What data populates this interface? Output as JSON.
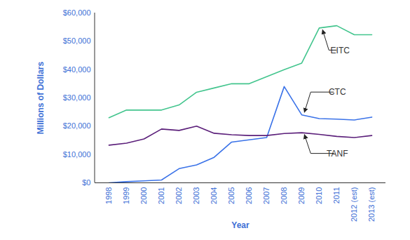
{
  "chart_data": {
    "type": "line",
    "x_label": "Year",
    "y_label": "Millions of Dollars",
    "categories": [
      "1998",
      "1999",
      "2000",
      "2001",
      "2002",
      "2003",
      "2004",
      "2005",
      "2006",
      "2007",
      "2008",
      "2009",
      "2010",
      "2011",
      "2012 (est)",
      "2013 (est)"
    ],
    "series": [
      {
        "name": "EITC",
        "color": "#43c58e",
        "values": [
          23000,
          25700,
          25700,
          25700,
          27500,
          32000,
          33500,
          35000,
          35000,
          37500,
          40000,
          42300,
          54700,
          55500,
          52300,
          52300
        ]
      },
      {
        "name": "CTC",
        "color": "#3a72e8",
        "values": [
          0,
          400,
          700,
          1000,
          5000,
          6300,
          9000,
          14400,
          15200,
          16000,
          34000,
          24000,
          22700,
          22500,
          22200,
          23200
        ]
      },
      {
        "name": "TANF",
        "color": "#5b1f7a",
        "values": [
          13300,
          14000,
          15500,
          19000,
          18500,
          20000,
          17500,
          17000,
          16700,
          16700,
          17400,
          17700,
          17100,
          16400,
          16000,
          16700
        ]
      }
    ],
    "ylim": [
      0,
      60000
    ],
    "yticks": [
      {
        "value": 0,
        "label": "$0"
      },
      {
        "value": 10000,
        "label": "$10,000"
      },
      {
        "value": 20000,
        "label": "$20,000"
      },
      {
        "value": 30000,
        "label": "$30,000"
      },
      {
        "value": 40000,
        "label": "$40,000"
      },
      {
        "value": 50000,
        "label": "$50,000"
      },
      {
        "value": 60000,
        "label": "$60,000"
      }
    ],
    "grid": false
  }
}
